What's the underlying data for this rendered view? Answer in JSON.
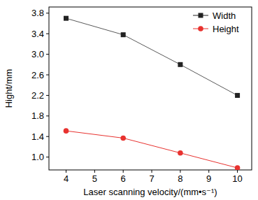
{
  "chart_data": {
    "type": "line",
    "x_label": "Laser scanning velocity/(mm•s⁻¹)",
    "y_label": "Hight/mm",
    "x": [
      4,
      6,
      8,
      10
    ],
    "series": [
      {
        "name": "Width",
        "color": "#222222",
        "marker": "square",
        "values": [
          3.7,
          3.38,
          2.8,
          2.2
        ]
      },
      {
        "name": "Height",
        "color": "#e8322f",
        "marker": "circle",
        "values": [
          1.51,
          1.37,
          1.08,
          0.79
        ]
      }
    ],
    "xlim": [
      3.4,
      10.5
    ],
    "ylim": [
      0.75,
      3.92
    ],
    "xticks": [
      4,
      5,
      6,
      7,
      8,
      9,
      10
    ],
    "yticks": [
      {
        "value": 1.0,
        "label": "1.0"
      },
      {
        "value": 1.4,
        "label": "1.4"
      },
      {
        "value": 1.8,
        "label": "1.8"
      },
      {
        "value": 2.2,
        "label": "2.2"
      },
      {
        "value": 2.6,
        "label": "2.6"
      },
      {
        "value": 3.0,
        "label": "3.0"
      },
      {
        "value": 3.4,
        "label": "3.4"
      },
      {
        "value": 3.8,
        "label": "3.8"
      }
    ],
    "legend": "upper right",
    "grid": false
  }
}
